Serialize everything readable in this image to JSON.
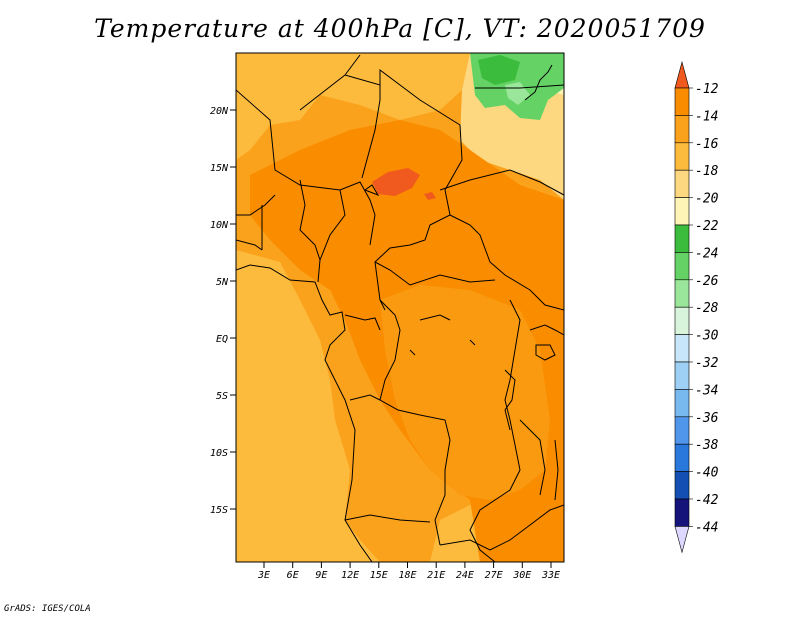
{
  "title": "Temperature at 400hPa [C], VT: 2020051709",
  "credit": "GrADS: IGES/COLA",
  "map": {
    "lat_labels": [
      "20N",
      "15N",
      "10N",
      "5N",
      "EQ",
      "5S",
      "10S",
      "15S"
    ],
    "lon_labels": [
      "3E",
      "6E",
      "9E",
      "12E",
      "15E",
      "18E",
      "21E",
      "24E",
      "27E",
      "30E",
      "33E"
    ]
  },
  "colorbar": {
    "labels": [
      "-12",
      "-14",
      "-16",
      "-18",
      "-20",
      "-22",
      "-24",
      "-26",
      "-28",
      "-30",
      "-32",
      "-34",
      "-36",
      "-38",
      "-40",
      "-42",
      "-44"
    ],
    "colors": [
      "#f05a1e",
      "#fa8c00",
      "#fba21d",
      "#fdbb3e",
      "#fdd880",
      "#fef4b6",
      "#3cbc3c",
      "#64d264",
      "#9ae69a",
      "#d8f5dc",
      "#c8e6fa",
      "#9ed0f5",
      "#78b9f0",
      "#5096eb",
      "#2a78dc",
      "#1450b4",
      "#14147a",
      "#dcd8ff"
    ]
  }
}
